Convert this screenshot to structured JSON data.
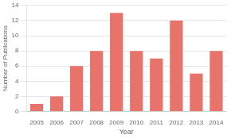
{
  "chart_data": {
    "type": "bar",
    "categories": [
      "2005",
      "2006",
      "2007",
      "2008",
      "2009",
      "2010",
      "2011",
      "2012",
      "2013",
      "2014"
    ],
    "values": [
      1,
      2,
      6,
      8,
      13,
      8,
      7,
      12,
      5,
      8
    ],
    "color": "#e8736a",
    "xlabel": "Year",
    "ylabel": "Number of Publications",
    "ylim": [
      0,
      14
    ],
    "yticks": [
      0,
      2,
      4,
      6,
      8,
      10,
      12,
      14
    ],
    "grid": "y"
  }
}
